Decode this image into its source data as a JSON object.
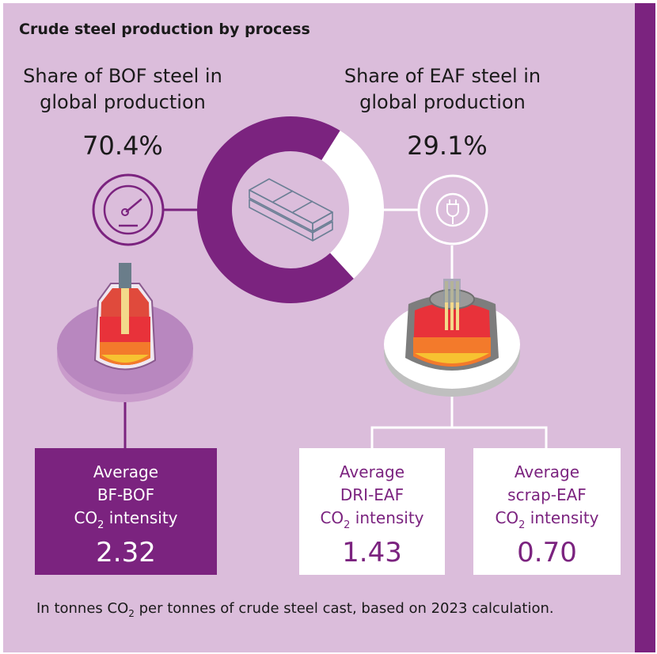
{
  "title": "Crude steel production by process",
  "bof": {
    "label_line1": "Share of BOF steel in",
    "label_line2": "global production",
    "share": "70.4%",
    "share_value": 70.4
  },
  "eaf": {
    "label_line1": "Share of EAF steel in",
    "label_line2": "global production",
    "share": "29.1%",
    "share_value": 29.1
  },
  "boxes": [
    {
      "line1": "Average",
      "line2": "BF-BOF",
      "co": "CO",
      "sub": "2",
      "intensity": " intensity",
      "value": "2.32"
    },
    {
      "line1": "Average",
      "line2": "DRI-EAF",
      "co": "CO",
      "sub": "2",
      "intensity": " intensity",
      "value": "1.43"
    },
    {
      "line1": "Average",
      "line2": "scrap-EAF",
      "co": "CO",
      "sub": "2",
      "intensity": " intensity",
      "value": "0.70"
    }
  ],
  "footnote": {
    "before": "In tonnes CO",
    "sub": "2",
    "after": " per tonnes of crude steel cast, based on 2023 calculation."
  },
  "colors": {
    "purple": "#7b237f",
    "panel": "#dbbddb",
    "light_purple": "#b887bf",
    "white": "#ffffff"
  },
  "icons": [
    "gauge-icon",
    "plug-icon",
    "steel-beam-icon",
    "bof-converter-icon",
    "eaf-furnace-icon"
  ]
}
